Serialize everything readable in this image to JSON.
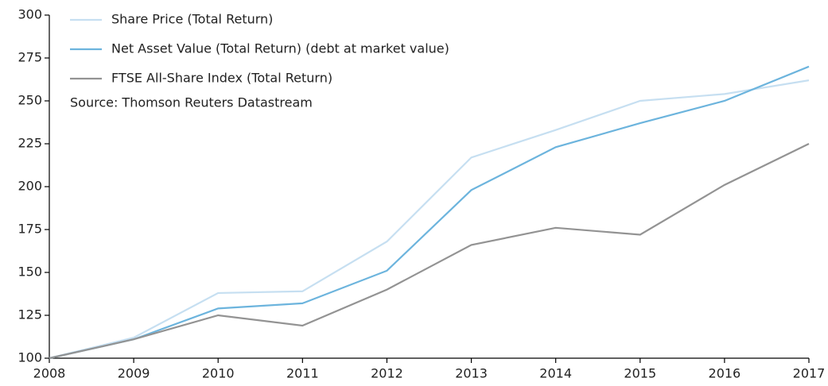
{
  "chart_data": {
    "type": "line",
    "x": [
      2008,
      2009,
      2010,
      2011,
      2012,
      2013,
      2014,
      2015,
      2016,
      2017
    ],
    "series": [
      {
        "name": "Share Price (Total Return)",
        "color": "#c6dff1",
        "values": [
          100,
          112,
          138,
          139,
          168,
          217,
          233,
          250,
          254,
          262
        ]
      },
      {
        "name": "Net Asset Value (Total Return) (debt at market value)",
        "color": "#6cb4dd",
        "values": [
          100,
          111,
          129,
          132,
          151,
          198,
          223,
          237,
          250,
          270
        ]
      },
      {
        "name": "FTSE All-Share Index (Total Return)",
        "color": "#939393",
        "values": [
          100,
          111,
          125,
          119,
          140,
          166,
          176,
          172,
          201,
          225
        ]
      }
    ],
    "annotation": "Source: Thomson Reuters Datastream",
    "xlim": [
      2008,
      2017
    ],
    "xticks": [
      2008,
      2009,
      2010,
      2011,
      2012,
      2013,
      2014,
      2015,
      2016,
      2017
    ],
    "ylim": [
      100,
      300
    ],
    "yticks": [
      100,
      125,
      150,
      175,
      200,
      225,
      250,
      275,
      300
    ],
    "grid": false,
    "legend": "upper left"
  }
}
